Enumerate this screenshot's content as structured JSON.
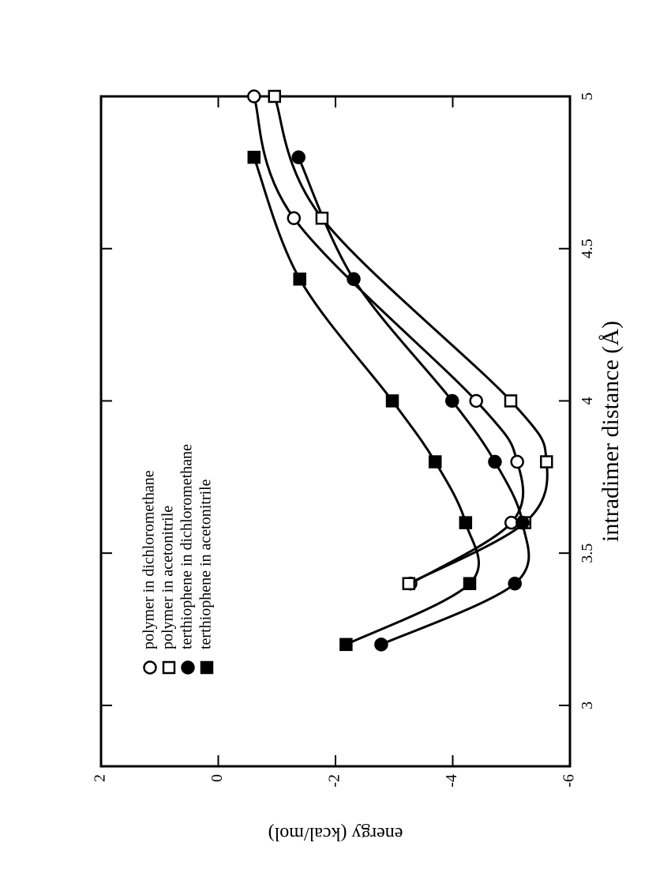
{
  "chart_data": {
    "type": "line",
    "x_label": "intradimer distance (Å)",
    "y_label": "energy (kcal/mol)",
    "xlim": [
      2.8,
      5
    ],
    "xticks": [
      3,
      3.5,
      4,
      4.5,
      5
    ],
    "ylim": [
      -6,
      2
    ],
    "yticks": [
      -6,
      -4,
      -2,
      0,
      2
    ],
    "legend": "upper left",
    "series": [
      {
        "name": "polymer in dichloromethane",
        "color": "#000000",
        "marker": "circle",
        "filled": false,
        "x": [
          3.4,
          3.6,
          3.8,
          4.0,
          4.6,
          5.0
        ],
        "values": [
          -3.28,
          -5.0,
          -5.1,
          -4.4,
          -1.29,
          -0.61
        ]
      },
      {
        "name": "polymer in acetonitrile",
        "color": "#000000",
        "marker": "square",
        "filled": false,
        "x": [
          3.4,
          3.6,
          3.8,
          4.0,
          4.6,
          5.0
        ],
        "values": [
          -3.25,
          -5.23,
          -5.6,
          -4.99,
          -1.77,
          -0.96
        ]
      },
      {
        "name": "terthiophene in dichloromethane",
        "color": "#000000",
        "marker": "circle",
        "filled": true,
        "x": [
          3.2,
          3.4,
          3.6,
          3.8,
          4.0,
          4.4,
          4.8
        ],
        "values": [
          -2.78,
          -5.06,
          -5.19,
          -4.72,
          -3.99,
          -2.31,
          -1.37
        ]
      },
      {
        "name": "terthiophene in acetonitrile",
        "color": "#000000",
        "marker": "square",
        "filled": true,
        "x": [
          3.2,
          3.4,
          3.6,
          3.8,
          4.0,
          4.4,
          4.8
        ],
        "values": [
          -2.18,
          -4.29,
          -4.22,
          -3.7,
          -2.97,
          -1.39,
          -0.61
        ]
      }
    ]
  }
}
